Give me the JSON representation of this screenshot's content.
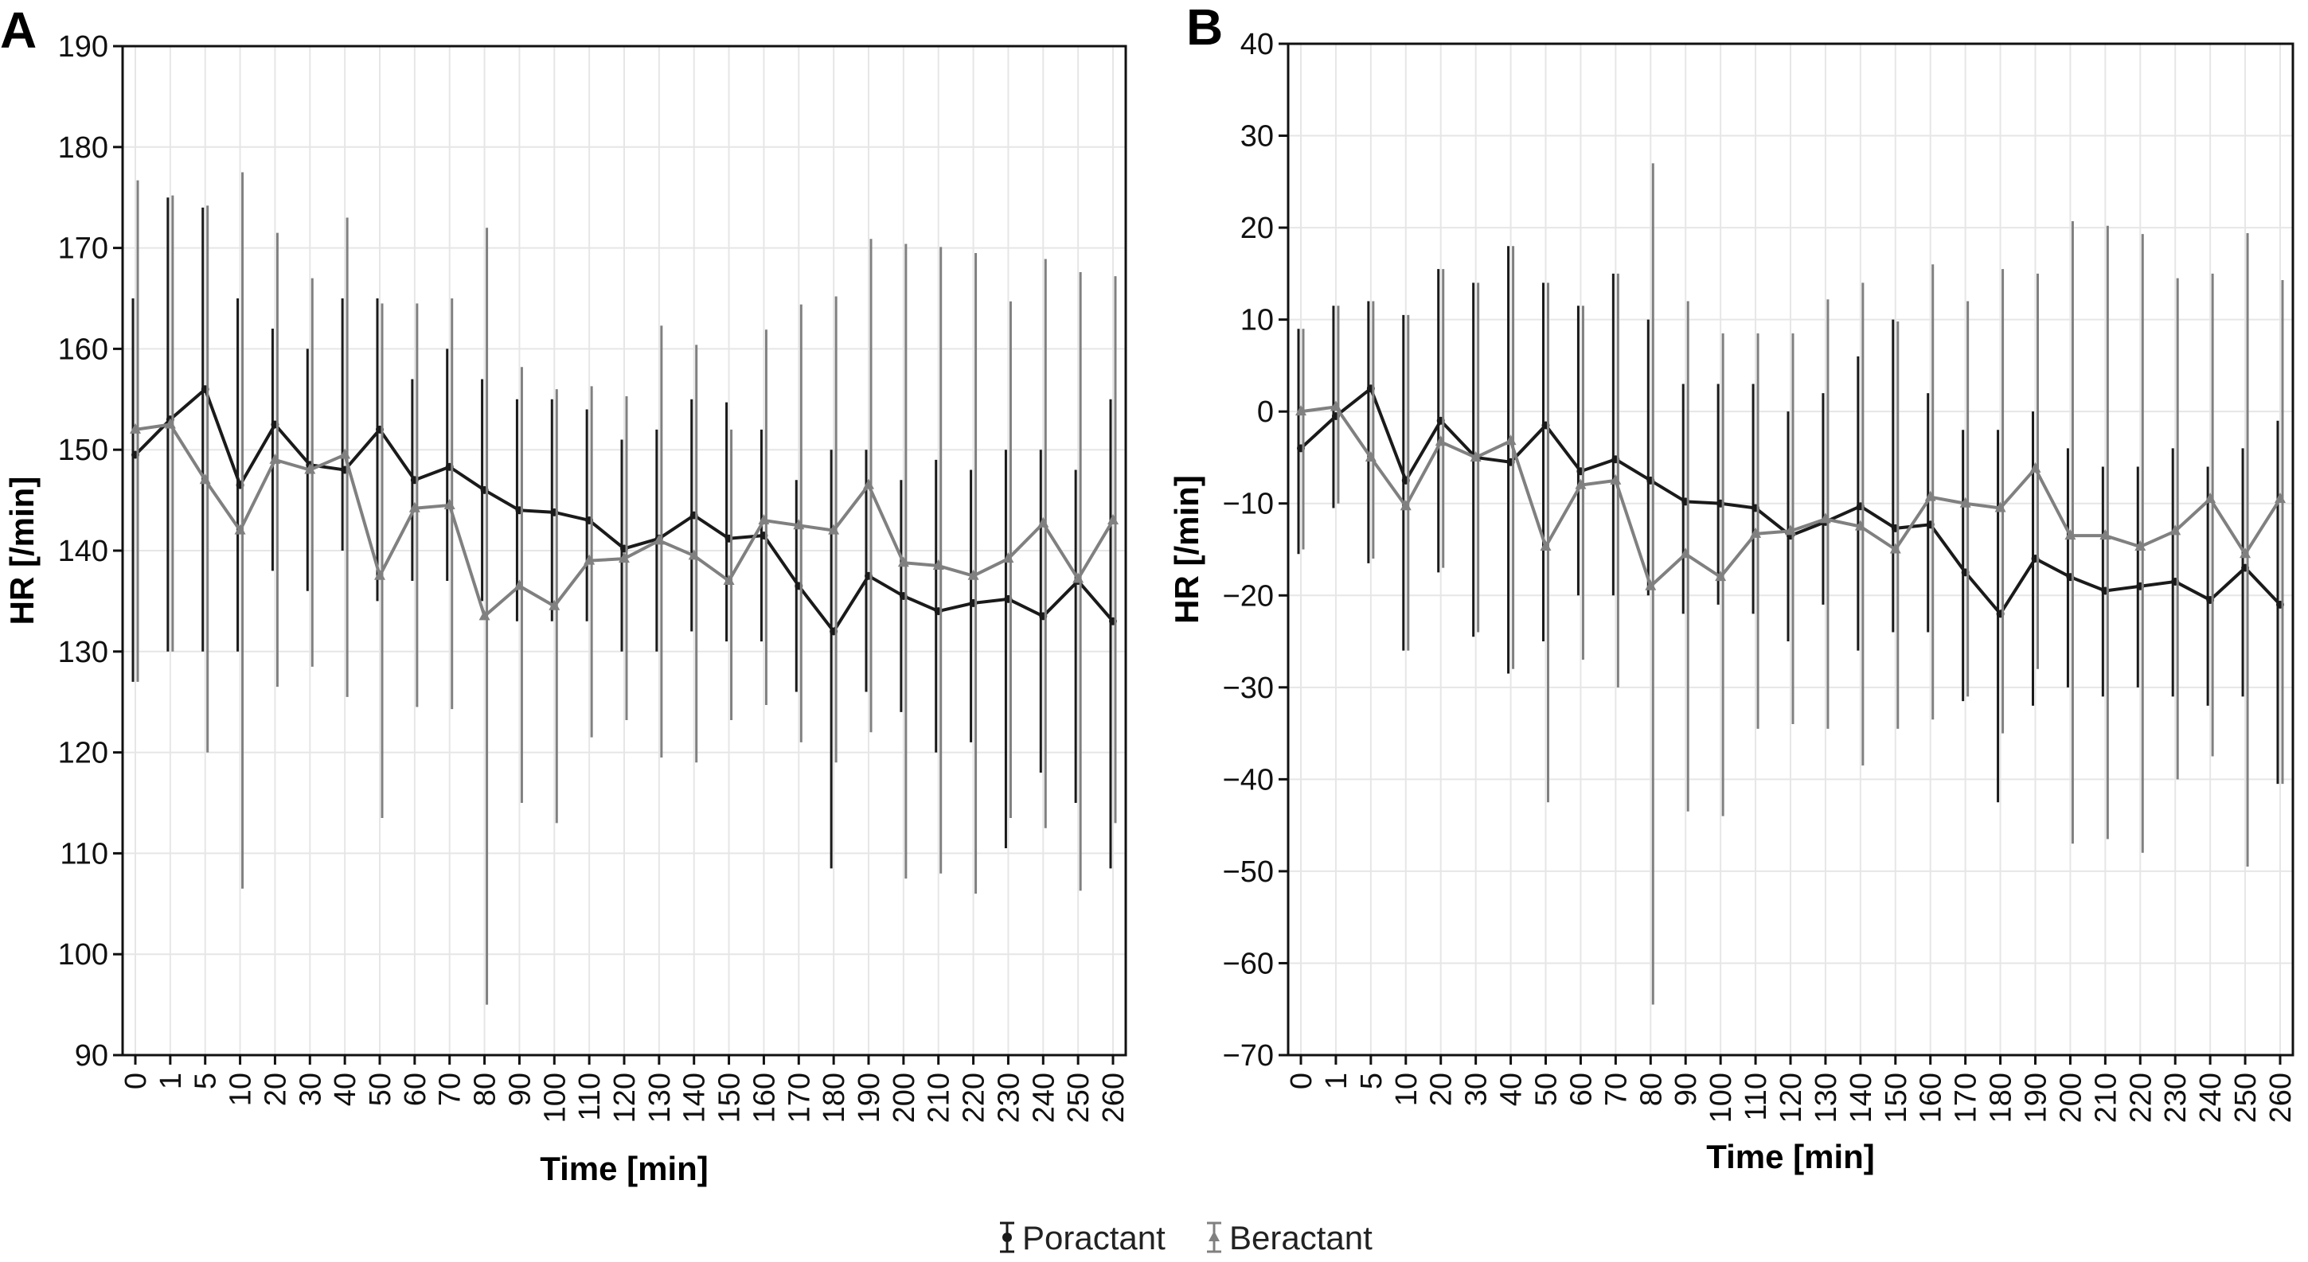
{
  "chart_data": [
    {
      "panel_label": "A",
      "type": "line",
      "xlabel": "Time [min]",
      "ylabel": "HR [/min]",
      "ylim": [
        90,
        190
      ],
      "yticks": [
        90,
        100,
        110,
        120,
        130,
        140,
        150,
        160,
        170,
        180,
        190
      ],
      "grid": true,
      "categories": [
        "0",
        "1",
        "5",
        "10",
        "20",
        "30",
        "40",
        "50",
        "60",
        "70",
        "80",
        "90",
        "100",
        "110",
        "120",
        "130",
        "140",
        "150",
        "160",
        "170",
        "180",
        "190",
        "200",
        "210",
        "220",
        "230",
        "240",
        "250",
        "260"
      ],
      "series": [
        {
          "name": "Poractant",
          "color": "#1a1a1a",
          "marker": "circle",
          "values": [
            149.5,
            153,
            156,
            146.5,
            152.5,
            148.5,
            148,
            152,
            147,
            148.3,
            146,
            144,
            143.8,
            143,
            140.2,
            141.2,
            143.5,
            141.2,
            141.5,
            136.5,
            132,
            137.5,
            135.5,
            134,
            134.8,
            135.2,
            133.5,
            137,
            133
          ],
          "lower": [
            127,
            130,
            130,
            130,
            138,
            136,
            140,
            135,
            137,
            137,
            135,
            133,
            133,
            133,
            130,
            130,
            132,
            131,
            131,
            126,
            108.5,
            126,
            124,
            120,
            121,
            110.5,
            118,
            115,
            108.5
          ],
          "upper": [
            165,
            175,
            174,
            165,
            162,
            160,
            165,
            165,
            157,
            160,
            157,
            155,
            155,
            154,
            151,
            152,
            155,
            154.7,
            152,
            147,
            150,
            150,
            147,
            149,
            148,
            150,
            150,
            148,
            155
          ]
        },
        {
          "name": "Beractant",
          "color": "#808080",
          "marker": "triangle",
          "values": [
            152,
            152.5,
            147,
            142,
            149,
            148,
            149.5,
            137.5,
            144.2,
            144.5,
            133.5,
            136.5,
            134.5,
            139,
            139.2,
            141,
            139.5,
            137,
            143,
            142.5,
            142,
            146.5,
            138.8,
            138.5,
            137.5,
            139.2,
            142.7,
            137.2,
            143
          ],
          "lower": [
            127,
            130,
            120,
            106.5,
            126.5,
            128.5,
            125.5,
            113.5,
            124.5,
            124.3,
            95,
            115,
            113,
            121.5,
            123.2,
            119.5,
            119,
            123.2,
            124.7,
            121,
            119,
            122,
            107.5,
            108,
            106,
            113.5,
            112.5,
            106.3,
            113
          ],
          "upper": [
            176.7,
            175.2,
            174.2,
            177.5,
            171.5,
            167,
            173,
            164.5,
            164.5,
            165,
            172,
            158.2,
            156,
            156.3,
            155.3,
            162.3,
            160.4,
            152,
            161.9,
            164.4,
            165.2,
            170.9,
            170.4,
            170.1,
            169.5,
            164.7,
            168.9,
            167.6,
            167.2
          ]
        }
      ]
    },
    {
      "panel_label": "B",
      "type": "line",
      "xlabel": "Time [min]",
      "ylabel": "HR [/min]",
      "ylim": [
        -70,
        40
      ],
      "yticks": [
        -70,
        -60,
        -50,
        -40,
        -30,
        -20,
        -10,
        0,
        10,
        20,
        30,
        40
      ],
      "grid": true,
      "categories": [
        "0",
        "1",
        "5",
        "10",
        "20",
        "30",
        "40",
        "50",
        "60",
        "70",
        "80",
        "90",
        "100",
        "110",
        "120",
        "130",
        "140",
        "150",
        "160",
        "170",
        "180",
        "190",
        "200",
        "210",
        "220",
        "230",
        "240",
        "250",
        "260"
      ],
      "series": [
        {
          "name": "Poractant",
          "color": "#1a1a1a",
          "marker": "circle",
          "values": [
            -4,
            -0.5,
            2.5,
            -7.5,
            -1,
            -5,
            -5.5,
            -1.5,
            -6.5,
            -5.2,
            -7.5,
            -9.8,
            -10,
            -10.5,
            -13.5,
            -12,
            -10.3,
            -12.7,
            -12.3,
            -17.5,
            -22,
            -16,
            -18,
            -19.5,
            -19,
            -18.5,
            -20.5,
            -17,
            -21
          ],
          "lower": [
            -15.5,
            -10.5,
            -16.5,
            -26,
            -17.5,
            -24.5,
            -28.5,
            -25,
            -20,
            -20,
            -20,
            -22,
            -21,
            -22,
            -25,
            -21,
            -26,
            -24,
            -24,
            -31.5,
            -42.5,
            -32,
            -30,
            -31,
            -30,
            -31,
            -32,
            -31,
            -40.5
          ],
          "upper": [
            9,
            11.5,
            12,
            10.5,
            15.5,
            14,
            18,
            14,
            11.5,
            15,
            10,
            3,
            3,
            3,
            0,
            2,
            6,
            10,
            2,
            -2,
            -2,
            0,
            -4,
            -6,
            -6,
            -4,
            -6,
            -4,
            -1
          ]
        },
        {
          "name": "Beractant",
          "color": "#808080",
          "marker": "triangle",
          "values": [
            0,
            0.5,
            -5,
            -10.3,
            -3.3,
            -5,
            -3.2,
            -14.7,
            -8,
            -7.5,
            -19,
            -15.5,
            -18,
            -13.3,
            -13,
            -11.7,
            -12.5,
            -15,
            -9.3,
            -10,
            -10.5,
            -6.2,
            -13.5,
            -13.5,
            -14.7,
            -13,
            -9.5,
            -15.5,
            -9.5
          ],
          "lower": [
            -15,
            -10,
            -16,
            -26,
            -17,
            -24,
            -28,
            -42.5,
            -27,
            -30,
            -64.5,
            -43.5,
            -44,
            -34.5,
            -34,
            -34.5,
            -38.5,
            -34.5,
            -33.5,
            -31,
            -35,
            -28,
            -47,
            -46.5,
            -48,
            -40,
            -37.5,
            -49.5,
            -40.5
          ],
          "upper": [
            9,
            11.5,
            12,
            10.5,
            15.5,
            14,
            18,
            14,
            11.5,
            15,
            27,
            12,
            8.5,
            8.5,
            8.5,
            12.2,
            14,
            9.8,
            16,
            12,
            15.5,
            15,
            20.7,
            20.2,
            19.3,
            14.5,
            15,
            19.4,
            14.3
          ]
        }
      ]
    }
  ],
  "legend": {
    "items": [
      {
        "label": "Poractant",
        "color": "#1a1a1a"
      },
      {
        "label": "Beractant",
        "color": "#808080"
      }
    ]
  }
}
